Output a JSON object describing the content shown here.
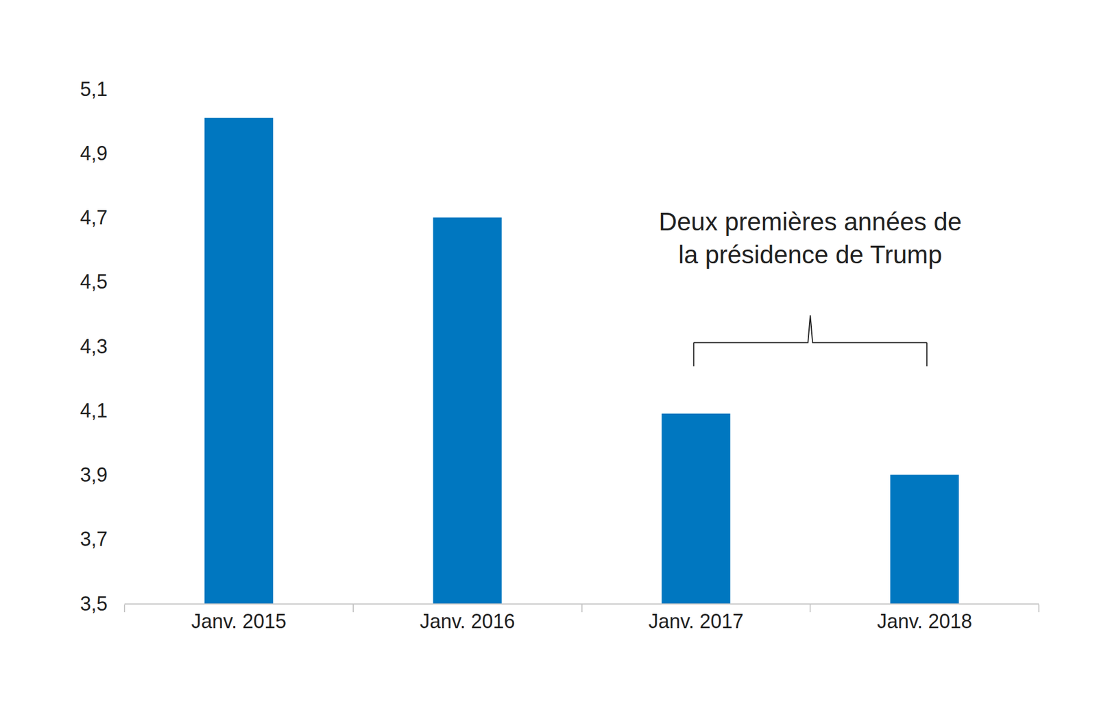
{
  "chart_data": {
    "type": "bar",
    "categories": [
      "Janv. 2015",
      "Janv. 2016",
      "Janv. 2017",
      "Janv. 2018"
    ],
    "values": [
      5.01,
      4.7,
      4.09,
      3.9
    ],
    "color": "#0077c0",
    "ylim": [
      3.5,
      5.1
    ],
    "yticks": [
      {
        "value": 3.5,
        "label": "3,5"
      },
      {
        "value": 3.7,
        "label": "3,7"
      },
      {
        "value": 3.9,
        "label": "3,9"
      },
      {
        "value": 4.1,
        "label": "4,1"
      },
      {
        "value": 4.3,
        "label": "4,3"
      },
      {
        "value": 4.5,
        "label": "4,5"
      },
      {
        "value": 4.7,
        "label": "4,7"
      },
      {
        "value": 4.9,
        "label": "4,9"
      },
      {
        "value": 5.1,
        "label": "5,1"
      }
    ],
    "grid": false,
    "annotation": [
      "Deux premières années de",
      "la présidence de Trump"
    ]
  }
}
